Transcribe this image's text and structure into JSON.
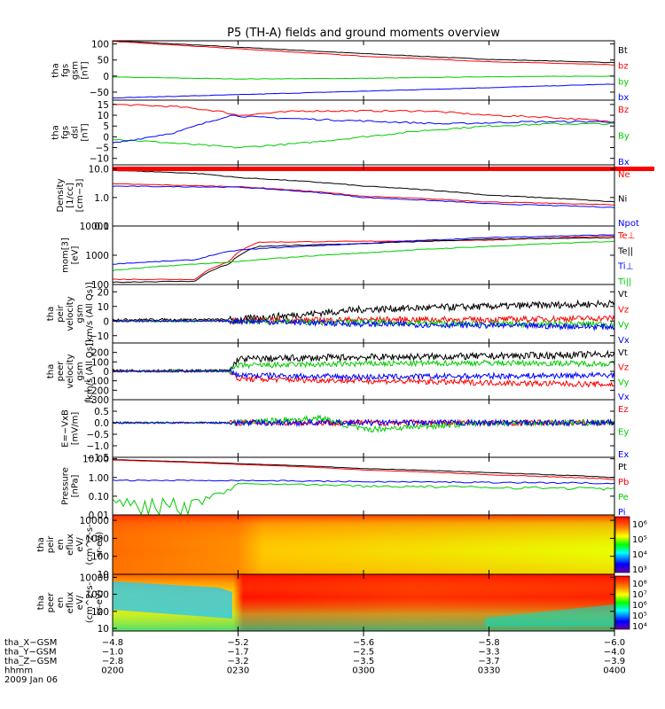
{
  "title": "P5 (TH-A) fields and ground moments overview",
  "colors": {
    "black": "#000000",
    "red": "#ff0000",
    "green": "#00cc00",
    "blue": "#0000ff"
  },
  "chart_data": [
    {
      "type": "line",
      "ylabel": [
        "tha",
        "fgs",
        "gsm",
        "[nT]"
      ],
      "ylim": [
        -75,
        110
      ],
      "yticks": [
        {
          "v": 100,
          "t": "100"
        },
        {
          "v": 50,
          "t": "50"
        },
        {
          "v": 0,
          "t": "0"
        },
        {
          "v": -50,
          "t": "−50"
        }
      ],
      "series": [
        {
          "name": "Bt",
          "color": "#000000",
          "x": [
            0,
            30,
            60,
            90,
            120
          ],
          "y": [
            110,
            90,
            70,
            52,
            42
          ]
        },
        {
          "name": "bz",
          "color": "#ff0000",
          "x": [
            0,
            30,
            60,
            90,
            120
          ],
          "y": [
            108,
            85,
            62,
            45,
            35
          ]
        },
        {
          "name": "by",
          "color": "#00cc00",
          "x": [
            0,
            30,
            60,
            90,
            120
          ],
          "y": [
            -3,
            -9,
            -7,
            -2,
            0
          ]
        },
        {
          "name": "bx",
          "color": "#0000ff",
          "x": [
            0,
            30,
            60,
            90,
            120
          ],
          "y": [
            -68,
            -58,
            -47,
            -36,
            -25
          ]
        }
      ]
    },
    {
      "type": "line",
      "ylabel": [
        "tha",
        "fgs",
        "dsl",
        "[nT]"
      ],
      "ylim": [
        -13,
        17
      ],
      "yticks": [
        {
          "v": 15,
          "t": "15"
        },
        {
          "v": 10,
          "t": "10"
        },
        {
          "v": 5,
          "t": "5"
        },
        {
          "v": 0,
          "t": "0"
        },
        {
          "v": -5,
          "t": "−5"
        },
        {
          "v": -10,
          "t": "−10"
        }
      ],
      "series": [
        {
          "name": "Bz",
          "color": "#ff0000",
          "x": [
            0,
            15,
            25,
            30,
            45,
            60,
            75,
            90,
            105,
            120
          ],
          "y": [
            15,
            14,
            12,
            10,
            12,
            12,
            12,
            10,
            9,
            7
          ]
        },
        {
          "name": "By",
          "color": "#00cc00",
          "x": [
            0,
            15,
            30,
            45,
            60,
            75,
            90,
            105,
            120
          ],
          "y": [
            -1,
            -3,
            -5,
            -3,
            0,
            3,
            5,
            6,
            6
          ]
        },
        {
          "name": "Bx",
          "color": "#0000ff",
          "x": [
            0,
            15,
            28,
            35,
            50,
            65,
            80,
            100,
            120
          ],
          "y": [
            -3,
            2,
            10,
            9,
            8,
            7,
            6,
            7,
            7
          ]
        }
      ]
    },
    {
      "type": "line",
      "log": true,
      "band": true,
      "ylabel": [
        "Density",
        "[1/cc]",
        "[cm−3]"
      ],
      "ylim": [
        0.1,
        14
      ],
      "yticks": [
        {
          "v": 10,
          "t": "10.0"
        },
        {
          "v": 1,
          "t": "1.0"
        },
        {
          "v": 0.1,
          "t": "0.1"
        }
      ],
      "series": [
        {
          "name": "Ne",
          "color": "#ff0000",
          "x": [
            0,
            30,
            60,
            90,
            120
          ],
          "y": [
            3.0,
            2.4,
            1.1,
            0.7,
            0.55
          ]
        },
        {
          "name": "Ni",
          "color": "#000000",
          "x": [
            0,
            20,
            30,
            60,
            90,
            120
          ],
          "y": [
            9,
            7,
            5,
            2.5,
            1.2,
            0.7
          ]
        },
        {
          "name": "Npot",
          "color": "#0000ff",
          "x": [
            0,
            30,
            60,
            90,
            120
          ],
          "y": [
            2.5,
            2.3,
            1.0,
            0.6,
            0.45
          ]
        }
      ]
    },
    {
      "type": "line",
      "log": true,
      "ylabel": [
        "mom[3]",
        "[eV]"
      ],
      "ylim": [
        100,
        10000
      ],
      "yticks": [
        {
          "v": 10000,
          "t": "10000"
        },
        {
          "v": 1000,
          "t": "1000"
        },
        {
          "v": 100,
          "t": "100"
        }
      ],
      "series": [
        {
          "name": "Te⊥",
          "color": "#ff0000",
          "x": [
            0,
            20,
            28,
            35,
            60,
            90,
            120
          ],
          "y": [
            150,
            150,
            600,
            2800,
            3000,
            3300,
            4500
          ]
        },
        {
          "name": "Te||",
          "color": "#000000",
          "x": [
            0,
            20,
            28,
            35,
            60,
            90,
            120
          ],
          "y": [
            120,
            130,
            500,
            2000,
            2500,
            3500,
            4000
          ]
        },
        {
          "name": "Ti⊥",
          "color": "#0000ff",
          "x": [
            0,
            20,
            30,
            60,
            90,
            120
          ],
          "y": [
            500,
            700,
            1500,
            2500,
            4000,
            5000
          ]
        },
        {
          "name": "Ti||",
          "color": "#00cc00",
          "x": [
            0,
            30,
            60,
            90,
            120
          ],
          "y": [
            300,
            600,
            1200,
            2000,
            3000
          ]
        }
      ]
    },
    {
      "type": "line",
      "noisy": true,
      "ylabel": [
        "tha",
        "peir",
        "velocity",
        "gsm",
        "[km/s (All Qs)]"
      ],
      "ylim": [
        -15,
        25
      ],
      "yticks": [
        {
          "v": 20,
          "t": "20"
        },
        {
          "v": 10,
          "t": "10"
        },
        {
          "v": 0,
          "t": "0"
        },
        {
          "v": -10,
          "t": "−10"
        }
      ],
      "series": [
        {
          "name": "Vt",
          "color": "#000000",
          "x": [
            0,
            30,
            60,
            90,
            120
          ],
          "y": [
            1,
            1,
            8,
            10,
            12
          ]
        },
        {
          "name": "Vz",
          "color": "#ff0000",
          "x": [
            0,
            30,
            60,
            90,
            120
          ],
          "y": [
            0,
            0,
            1,
            1,
            2
          ]
        },
        {
          "name": "Vy",
          "color": "#00cc00",
          "x": [
            0,
            30,
            60,
            90,
            120
          ],
          "y": [
            0,
            0,
            -1,
            -2,
            -2
          ]
        },
        {
          "name": "Vx",
          "color": "#0000ff",
          "x": [
            0,
            30,
            60,
            90,
            120
          ],
          "y": [
            0,
            0,
            -2,
            -3,
            -4
          ]
        }
      ]
    },
    {
      "type": "line",
      "noisy": true,
      "ylabel": [
        "tha",
        "peer",
        "velocity",
        "gsm",
        "[km/s (All Qs)]"
      ],
      "ylim": [
        -300,
        300
      ],
      "yticks": [
        {
          "v": 200,
          "t": "200"
        },
        {
          "v": 100,
          "t": "100"
        },
        {
          "v": 0,
          "t": "0"
        },
        {
          "v": -100,
          "t": "−100"
        },
        {
          "v": -200,
          "t": "−200"
        },
        {
          "v": -300,
          "t": "−300"
        }
      ],
      "series": [
        {
          "name": "Vt",
          "color": "#000000",
          "x": [
            0,
            28,
            30,
            60,
            90,
            120
          ],
          "y": [
            10,
            10,
            130,
            150,
            160,
            180
          ]
        },
        {
          "name": "Vz",
          "color": "#ff0000",
          "x": [
            0,
            28,
            30,
            60,
            90,
            120
          ],
          "y": [
            0,
            0,
            -80,
            -100,
            -120,
            -140
          ]
        },
        {
          "name": "Vy",
          "color": "#00cc00",
          "x": [
            0,
            28,
            30,
            60,
            90,
            120
          ],
          "y": [
            0,
            0,
            60,
            80,
            90,
            80
          ]
        },
        {
          "name": "Vx",
          "color": "#0000ff",
          "x": [
            0,
            28,
            30,
            60,
            90,
            120
          ],
          "y": [
            0,
            0,
            -40,
            -60,
            -50,
            -40
          ]
        }
      ]
    },
    {
      "type": "line",
      "noisy": true,
      "ylabel": [
        "E=−VxB",
        "[mV/m]"
      ],
      "ylim": [
        -1.5,
        1.0
      ],
      "yticks": [
        {
          "v": 0.5,
          "t": "0.5"
        },
        {
          "v": 0,
          "t": "0.0"
        },
        {
          "v": -0.5,
          "t": "−0.5"
        },
        {
          "v": -1,
          "t": "−1.0"
        },
        {
          "v": -1.5,
          "t": "−1.5"
        }
      ],
      "series": [
        {
          "name": "Ez",
          "color": "#ff0000",
          "x": [
            0,
            30,
            60,
            90,
            120
          ],
          "y": [
            0,
            0,
            0,
            0,
            0
          ]
        },
        {
          "name": "Ey",
          "color": "#00cc00",
          "x": [
            0,
            30,
            50,
            60,
            90,
            120
          ],
          "y": [
            0,
            0,
            0.2,
            -0.3,
            0,
            0
          ]
        },
        {
          "name": "Ex",
          "color": "#0000ff",
          "x": [
            0,
            30,
            60,
            90,
            120
          ],
          "y": [
            0,
            0,
            0,
            0,
            0
          ]
        }
      ]
    },
    {
      "type": "line",
      "log": true,
      "ylabel": [
        "Pressure",
        "[nPa]"
      ],
      "ylim": [
        0.01,
        12
      ],
      "yticks": [
        {
          "v": 10,
          "t": "10.00"
        },
        {
          "v": 1,
          "t": "1.00"
        },
        {
          "v": 0.1,
          "t": "0.10"
        },
        {
          "v": 0.01,
          "t": "0.01"
        }
      ],
      "series": [
        {
          "name": "Pt",
          "color": "#000000",
          "x": [
            0,
            30,
            60,
            90,
            120
          ],
          "y": [
            9,
            5.5,
            3,
            1.8,
            1.0
          ]
        },
        {
          "name": "Pb",
          "color": "#ff0000",
          "x": [
            0,
            30,
            60,
            90,
            120
          ],
          "y": [
            8.5,
            5,
            2.5,
            1.4,
            0.8
          ]
        },
        {
          "name": "Pe",
          "color": "#00cc00",
          "x": [
            0,
            20,
            28,
            30,
            60,
            90,
            120
          ],
          "y": [
            0.04,
            0.05,
            0.2,
            0.5,
            0.35,
            0.3,
            0.25
          ]
        },
        {
          "name": "Pi",
          "color": "#0000ff",
          "x": [
            0,
            30,
            60,
            90,
            120
          ],
          "y": [
            0.7,
            0.7,
            0.6,
            0.55,
            0.5
          ]
        }
      ]
    },
    {
      "type": "heatmap",
      "ylabel": [
        "tha",
        "peir",
        "en",
        "eflux",
        "eV/",
        "(cm^2-s-",
        "sr-eV)"
      ],
      "ylim": [
        10,
        20000
      ],
      "yticks": [
        {
          "v": 10000,
          "t": "10000"
        },
        {
          "v": 1000,
          "t": "1000"
        },
        {
          "v": 100,
          "t": "100"
        },
        {
          "v": 10,
          "t": "10"
        }
      ],
      "colorbar": {
        "labels": [
          "10⁶",
          "10⁵",
          "10⁴",
          "10³"
        ]
      }
    },
    {
      "type": "heatmap",
      "ylabel": [
        "tha",
        "peer",
        "en",
        "eflux",
        "eV/",
        "(cm^2-s-",
        "sr-eV)"
      ],
      "ylim": [
        7,
        15000
      ],
      "yticks": [
        {
          "v": 10000,
          "t": "10000"
        },
        {
          "v": 1000,
          "t": "1000"
        },
        {
          "v": 100,
          "t": "100"
        },
        {
          "v": 10,
          "t": "10"
        }
      ],
      "colorbar": {
        "labels": [
          "10⁸",
          "10⁷",
          "10⁶",
          "10⁵",
          "10⁴"
        ]
      }
    }
  ],
  "xaxis": {
    "range": [
      0,
      120
    ],
    "ticks": [
      0,
      30,
      60,
      90,
      120
    ],
    "rows": [
      {
        "label": "tha_X−GSM",
        "vals": [
          "−4.8",
          "−5.2",
          "−5.6",
          "−5.8",
          "−6.0"
        ]
      },
      {
        "label": "tha_Y−GSM",
        "vals": [
          "−1.0",
          "−1.7",
          "−2.5",
          "−3.3",
          "−4.0"
        ]
      },
      {
        "label": "tha_Z−GSM",
        "vals": [
          "−2.8",
          "−3.2",
          "−3.5",
          "−3.7",
          "−3.9"
        ]
      },
      {
        "label": "hhmm",
        "vals": [
          "0200",
          "0230",
          "0300",
          "0330",
          "0400"
        ]
      }
    ],
    "date": "2009 Jan 06"
  }
}
